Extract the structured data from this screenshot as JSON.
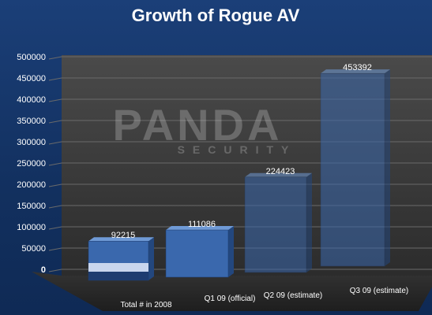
{
  "chart_data": {
    "type": "bar",
    "title": "Growth of Rogue AV",
    "categories": [
      "Total # in 2008",
      "Q1 09 (official)",
      "Q2 09 (estimate)",
      "Q3 09 (estimate)"
    ],
    "values": [
      92215,
      111086,
      224423,
      453392
    ],
    "data_labels": [
      "92215",
      "111086",
      "224423",
      "453392"
    ],
    "ylim": [
      0,
      500000
    ],
    "yticks": [
      "0",
      "50000",
      "100000",
      "150000",
      "200000",
      "250000",
      "300000",
      "350000",
      "400000",
      "450000",
      "500000"
    ],
    "grid": true,
    "legend": "none",
    "style": "3d",
    "colors": {
      "bar": "#3a68ad",
      "bar_top": "#6f9ad6",
      "bar_side": "#23477e",
      "wall": "#3c3c3c",
      "floor": "#2a2a2a"
    }
  },
  "watermark": {
    "brand": "PANDA",
    "sub": "SECURITY"
  }
}
